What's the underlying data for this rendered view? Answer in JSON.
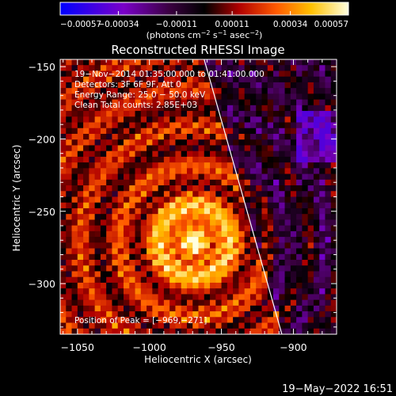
{
  "chart_data": {
    "type": "heatmap",
    "title": "Reconstructed RHESSI Image",
    "xlabel": "Heliocentric X (arcsec)",
    "ylabel": "Heliocentric Y (arcsec)",
    "xlim": [
      -1062,
      -870
    ],
    "ylim": [
      -335,
      -145
    ],
    "x_ticks": [
      -1050,
      -1000,
      -950,
      -900
    ],
    "x_tick_labels": [
      "−1050",
      "−1000",
      "−950",
      "−900"
    ],
    "y_ticks": [
      -150,
      -200,
      -250,
      -300
    ],
    "y_tick_labels": [
      "−150",
      "−200",
      "−250",
      "−300"
    ],
    "colorbar": {
      "range": [
        -0.00057,
        0.00057
      ],
      "ticks": [
        -0.00057,
        -0.00034,
        -0.00011,
        0.00011,
        0.00034,
        0.00057
      ],
      "tick_labels": [
        "−0.00057",
        "−0.00034",
        "−0.00011",
        "0.00011",
        "0.00034",
        "0.00057"
      ],
      "units_prefix": "(photons cm",
      "units_mid1": " s",
      "units_mid2": " asec",
      "units_suffix": ")",
      "sup1": "−2",
      "sup2": "−1",
      "sup3": "−2"
    },
    "info_lines": [
      "19−Nov−2014 01:35:00.000 to 01:41:00.000",
      "Detectors: 3F 6F 9F, Att 0",
      "Energy Range: 25.0 − 50.0 keV",
      "Clean     Total counts: 2.85E+03"
    ],
    "peak_label": "Position of Peak = [−969,−271]",
    "peak": {
      "x": -969,
      "y": -271
    },
    "limb_line": [
      {
        "x": -962,
        "y": -145
      },
      {
        "x": -908,
        "y": -335
      }
    ],
    "grid": false
  },
  "footer": {
    "timestamp": "19−May−2022 16:51"
  }
}
